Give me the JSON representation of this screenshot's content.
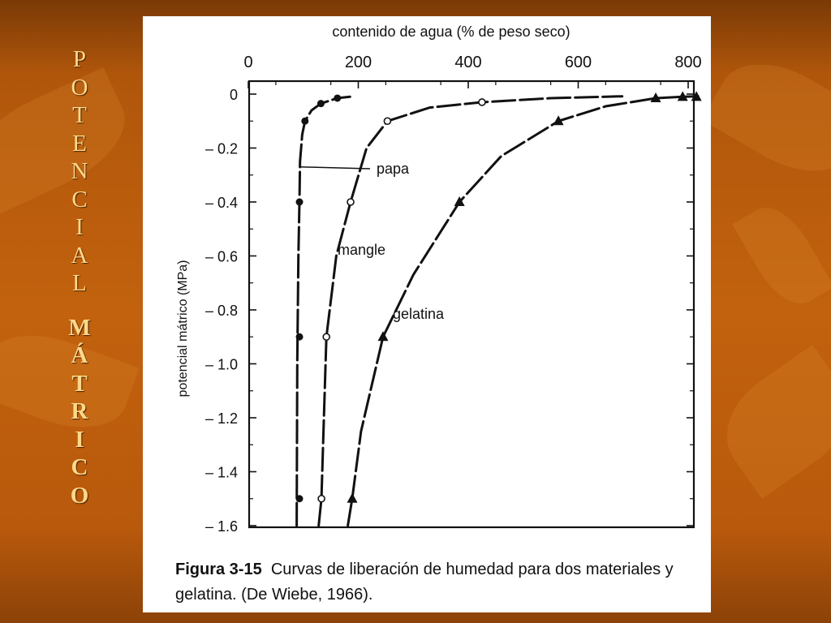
{
  "side_title": {
    "word1": [
      "P",
      "O",
      "T",
      "E",
      "N",
      "C",
      "I",
      "A",
      "L"
    ],
    "word2": [
      "M",
      "Á",
      "T",
      "R",
      "I",
      "C",
      "O"
    ]
  },
  "caption": {
    "figure_label": "Figura 3-15",
    "text": "Curvas de liberación de humedad para dos materiales y gelatina. (De Wiebe, 1966)."
  },
  "colors": {
    "background": "#c2620e",
    "side_title": "#ffd98a",
    "panel": "#ffffff",
    "ink": "#111111"
  },
  "chart_data": {
    "type": "line",
    "title": "",
    "xlabel": "contenido de agua (% de peso seco)",
    "ylabel": "potencial mátrico (MPa)",
    "xlim": [
      0,
      800
    ],
    "ylim": [
      -1.6,
      0
    ],
    "x_ticks": [
      0,
      200,
      400,
      600,
      800
    ],
    "x_tick_labels": [
      "0",
      "200",
      "400",
      "600",
      "800"
    ],
    "x_axis_position": "top",
    "y_ticks": [
      0,
      -0.2,
      -0.4,
      -0.6,
      -0.8,
      -1.0,
      -1.2,
      -1.4,
      -1.6
    ],
    "y_tick_labels": [
      "0",
      "– 0.2",
      "– 0.4",
      "– 0.6",
      "– 0.8",
      "– 1.0",
      "– 1.2",
      "– 1.4",
      "– 1.6"
    ],
    "grid": false,
    "series": [
      {
        "name": "papa",
        "marker": "filled-circle",
        "points": [
          [
            93,
            -1.5
          ],
          [
            93,
            -0.9
          ],
          [
            93,
            -0.4
          ],
          [
            103,
            -0.1
          ],
          [
            132,
            -0.035
          ],
          [
            162,
            -0.015
          ]
        ],
        "curve": [
          [
            88,
            -1.6
          ],
          [
            89,
            -1.0
          ],
          [
            91,
            -0.6
          ],
          [
            93,
            -0.4
          ],
          [
            94,
            -0.25
          ],
          [
            98,
            -0.15
          ],
          [
            103,
            -0.1
          ],
          [
            115,
            -0.06
          ],
          [
            132,
            -0.035
          ],
          [
            162,
            -0.015
          ],
          [
            185,
            -0.01
          ]
        ]
      },
      {
        "name": "mangle",
        "marker": "open-circle",
        "points": [
          [
            133,
            -1.5
          ],
          [
            142,
            -0.9
          ],
          [
            186,
            -0.4
          ],
          [
            253,
            -0.1
          ],
          [
            425,
            -0.03
          ]
        ],
        "curve": [
          [
            128,
            -1.6
          ],
          [
            133,
            -1.5
          ],
          [
            136,
            -1.3
          ],
          [
            142,
            -0.9
          ],
          [
            160,
            -0.6
          ],
          [
            186,
            -0.4
          ],
          [
            215,
            -0.2
          ],
          [
            253,
            -0.1
          ],
          [
            330,
            -0.05
          ],
          [
            425,
            -0.03
          ],
          [
            550,
            -0.015
          ],
          [
            680,
            -0.008
          ]
        ]
      },
      {
        "name": "gelatina",
        "marker": "filled-triangle",
        "points": [
          [
            189,
            -1.5
          ],
          [
            245,
            -0.9
          ],
          [
            384,
            -0.4
          ],
          [
            564,
            -0.1
          ],
          [
            741,
            -0.015
          ],
          [
            790,
            -0.01
          ],
          [
            815,
            -0.01
          ]
        ],
        "curve": [
          [
            181,
            -1.6
          ],
          [
            189,
            -1.5
          ],
          [
            205,
            -1.25
          ],
          [
            245,
            -0.9
          ],
          [
            300,
            -0.67
          ],
          [
            384,
            -0.4
          ],
          [
            460,
            -0.23
          ],
          [
            564,
            -0.1
          ],
          [
            650,
            -0.045
          ],
          [
            741,
            -0.015
          ],
          [
            790,
            -0.01
          ],
          [
            818,
            -0.008
          ]
        ]
      }
    ],
    "annotations": [
      "papa",
      "mangle",
      "gelatina"
    ]
  }
}
